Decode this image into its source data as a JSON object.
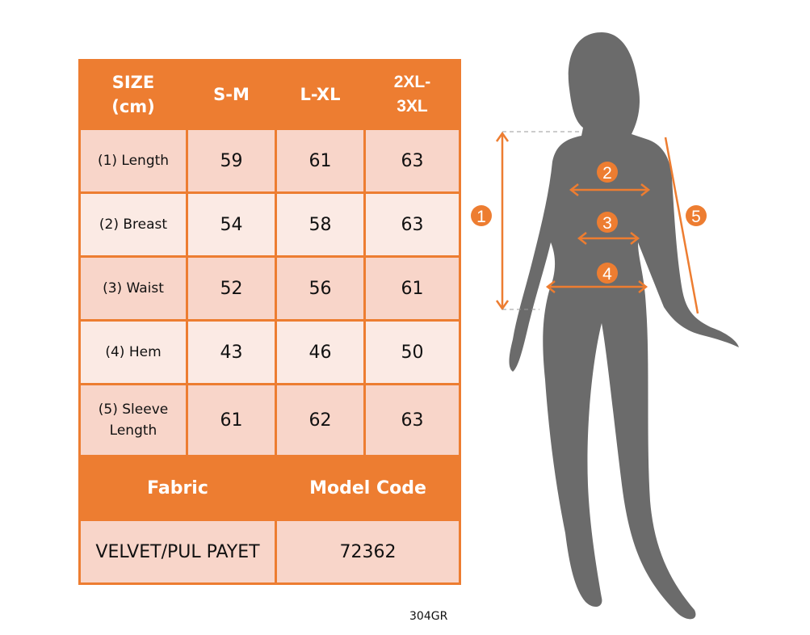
{
  "table": {
    "headers": [
      "SIZE (cm)",
      "S-M",
      "L-XL",
      "2XL-3XL"
    ],
    "header_lines": [
      [
        "SIZE",
        "(cm)"
      ],
      [
        "S-M"
      ],
      [
        "L-XL"
      ],
      [
        "2XL-",
        "3XL"
      ]
    ],
    "rows": [
      {
        "label": "(1) Length",
        "values": [
          "59",
          "61",
          "63"
        ]
      },
      {
        "label": "(2) Breast",
        "values": [
          "54",
          "58",
          "63"
        ]
      },
      {
        "label": "(3) Waist",
        "values": [
          "52",
          "56",
          "61"
        ]
      },
      {
        "label": "(4) Hem",
        "values": [
          "43",
          "46",
          "50"
        ]
      },
      {
        "label_lines": [
          "(5) Sleeve",
          "Length"
        ],
        "values": [
          "61",
          "62",
          "63"
        ]
      }
    ],
    "footer_headers": [
      "Fabric",
      "Model Code"
    ],
    "footer_values": [
      "VELVET/PUL PAYET",
      "72362"
    ]
  },
  "figure": {
    "markers": [
      "1",
      "2",
      "3",
      "4",
      "5"
    ]
  },
  "product_code": "304GR",
  "colors": {
    "accent": "#ED7D31",
    "row_dark": "#F8D5C9",
    "row_light": "#FBEAE4",
    "silhouette": "#6B6B6B"
  }
}
